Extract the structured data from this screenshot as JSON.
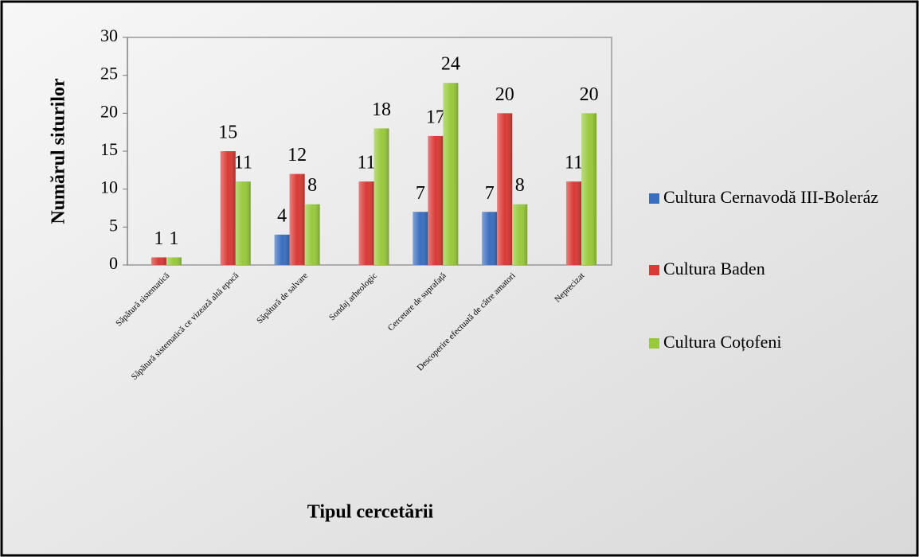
{
  "chart_data": {
    "type": "bar",
    "x_label": "Tipul cercetării",
    "y_label": "Numărul siturilor",
    "categories": [
      "Săpătură sistematică",
      "Săpătură sistematică ce vizează altă epocă",
      "Săpătură de salvare",
      "Sondaj arheologic",
      "Cercetare de suprafață",
      "Descoperire efectuată de către amatori",
      "Neprecizat"
    ],
    "series": [
      {
        "name": "Cultura Cernavodă III-Boleráz",
        "color": "#3a6fbf",
        "values": [
          null,
          null,
          4,
          null,
          7,
          7,
          null
        ]
      },
      {
        "name": "Cultura Baden",
        "color": "#d93a36",
        "values": [
          1,
          15,
          12,
          11,
          17,
          20,
          11
        ]
      },
      {
        "name": "Cultura Coțofeni",
        "color": "#98c93c",
        "values": [
          1,
          11,
          8,
          18,
          24,
          8,
          20
        ]
      }
    ],
    "ylim": [
      0,
      30
    ],
    "yticks": [
      0,
      5,
      10,
      15,
      20,
      25,
      30
    ],
    "grid": false,
    "legend": "right"
  }
}
